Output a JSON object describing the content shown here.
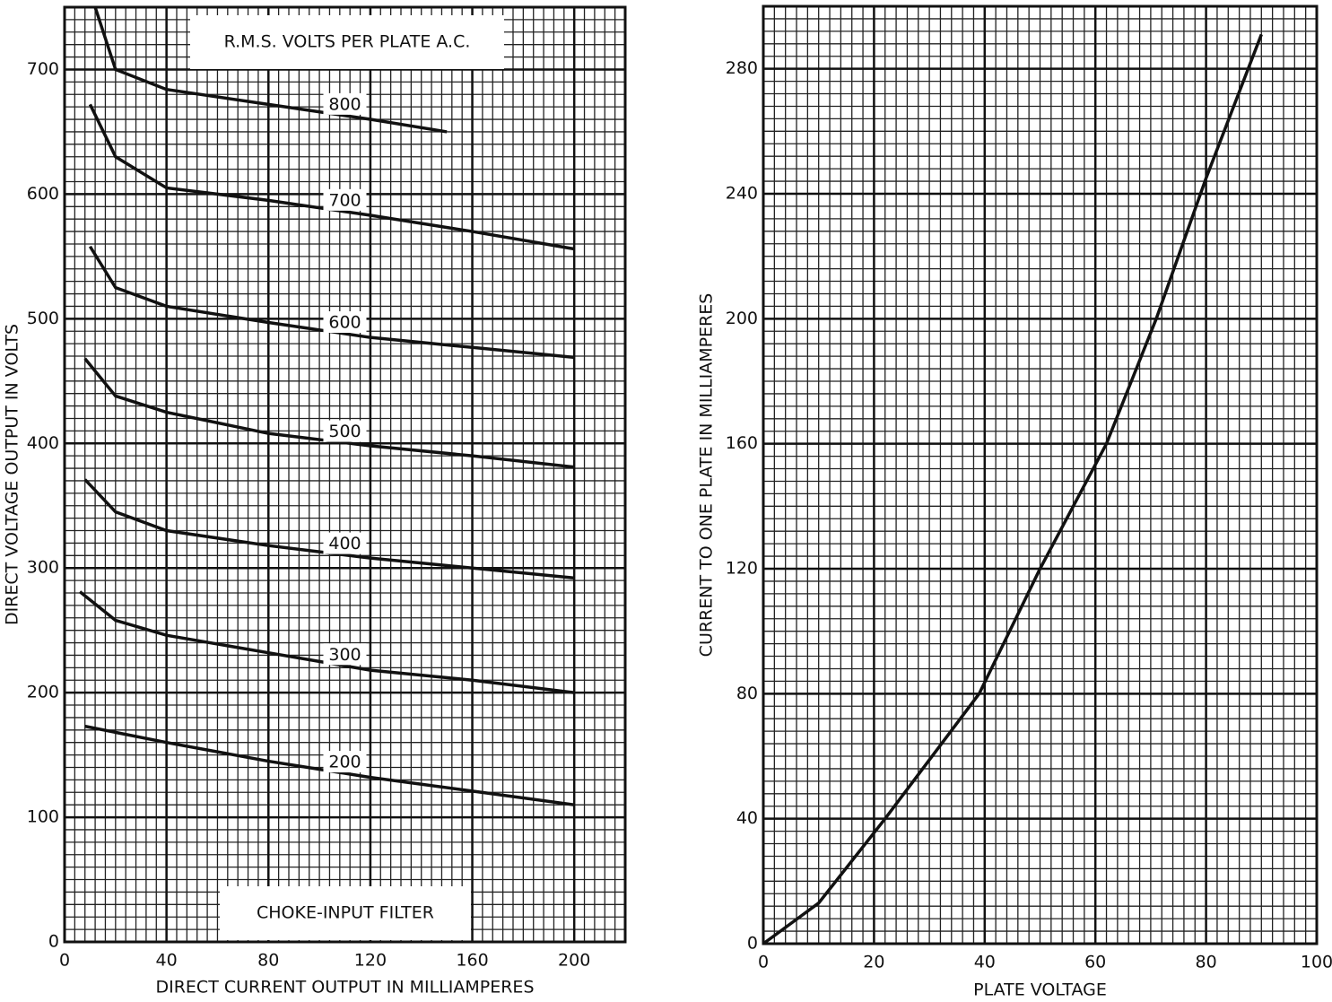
{
  "chart_data": [
    {
      "type": "line",
      "x_label": "DIRECT CURRENT OUTPUT IN MILLIAMPERES",
      "y_label": "DIRECT VOLTAGE OUTPUT IN VOLTS",
      "annotations": [
        "R.M.S. VOLTS PER PLATE A.C.",
        "CHOKE-INPUT FILTER"
      ],
      "xlim": [
        0,
        220
      ],
      "ylim": [
        0,
        750
      ],
      "xticks": [
        0,
        40,
        80,
        120,
        160,
        200
      ],
      "yticks": [
        0,
        100,
        200,
        300,
        400,
        500,
        600,
        700
      ],
      "grid": true,
      "color": "#111111",
      "series": [
        {
          "name": "800",
          "x": [
            12,
            20,
            40,
            80,
            120,
            150
          ],
          "values": [
            750,
            700,
            684,
            672,
            660,
            650
          ]
        },
        {
          "name": "700",
          "x": [
            10,
            20,
            40,
            80,
            120,
            160,
            200
          ],
          "values": [
            672,
            630,
            605,
            595,
            583,
            570,
            556
          ]
        },
        {
          "name": "600",
          "x": [
            10,
            20,
            40,
            80,
            120,
            160,
            200
          ],
          "values": [
            558,
            525,
            510,
            497,
            485,
            477,
            469
          ]
        },
        {
          "name": "500",
          "x": [
            8,
            20,
            40,
            80,
            120,
            160,
            200
          ],
          "values": [
            468,
            438,
            425,
            408,
            398,
            390,
            381
          ]
        },
        {
          "name": "400",
          "x": [
            8,
            20,
            40,
            80,
            120,
            160,
            200
          ],
          "values": [
            371,
            345,
            330,
            318,
            308,
            300,
            292
          ]
        },
        {
          "name": "300",
          "x": [
            6,
            20,
            40,
            80,
            120,
            160,
            200
          ],
          "values": [
            281,
            258,
            246,
            232,
            218,
            210,
            200
          ]
        },
        {
          "name": "200",
          "x": [
            8,
            40,
            80,
            120,
            160,
            200
          ],
          "values": [
            173,
            160,
            145,
            132,
            121,
            110
          ]
        }
      ]
    },
    {
      "type": "line",
      "x_label": "PLATE VOLTAGE",
      "y_label": "CURRENT TO ONE PLATE IN MILLIAMPERES",
      "xlim": [
        0,
        100
      ],
      "ylim": [
        0,
        300
      ],
      "xticks": [
        0,
        20,
        40,
        60,
        80,
        100
      ],
      "yticks": [
        0,
        40,
        80,
        120,
        160,
        200,
        240,
        280
      ],
      "grid": true,
      "color": "#111111",
      "series": [
        {
          "x": [
            0,
            10,
            22,
            39,
            50,
            62,
            71,
            80,
            90
          ],
          "values": [
            0,
            13,
            40,
            80,
            120,
            160,
            200,
            245,
            291
          ]
        }
      ]
    }
  ]
}
